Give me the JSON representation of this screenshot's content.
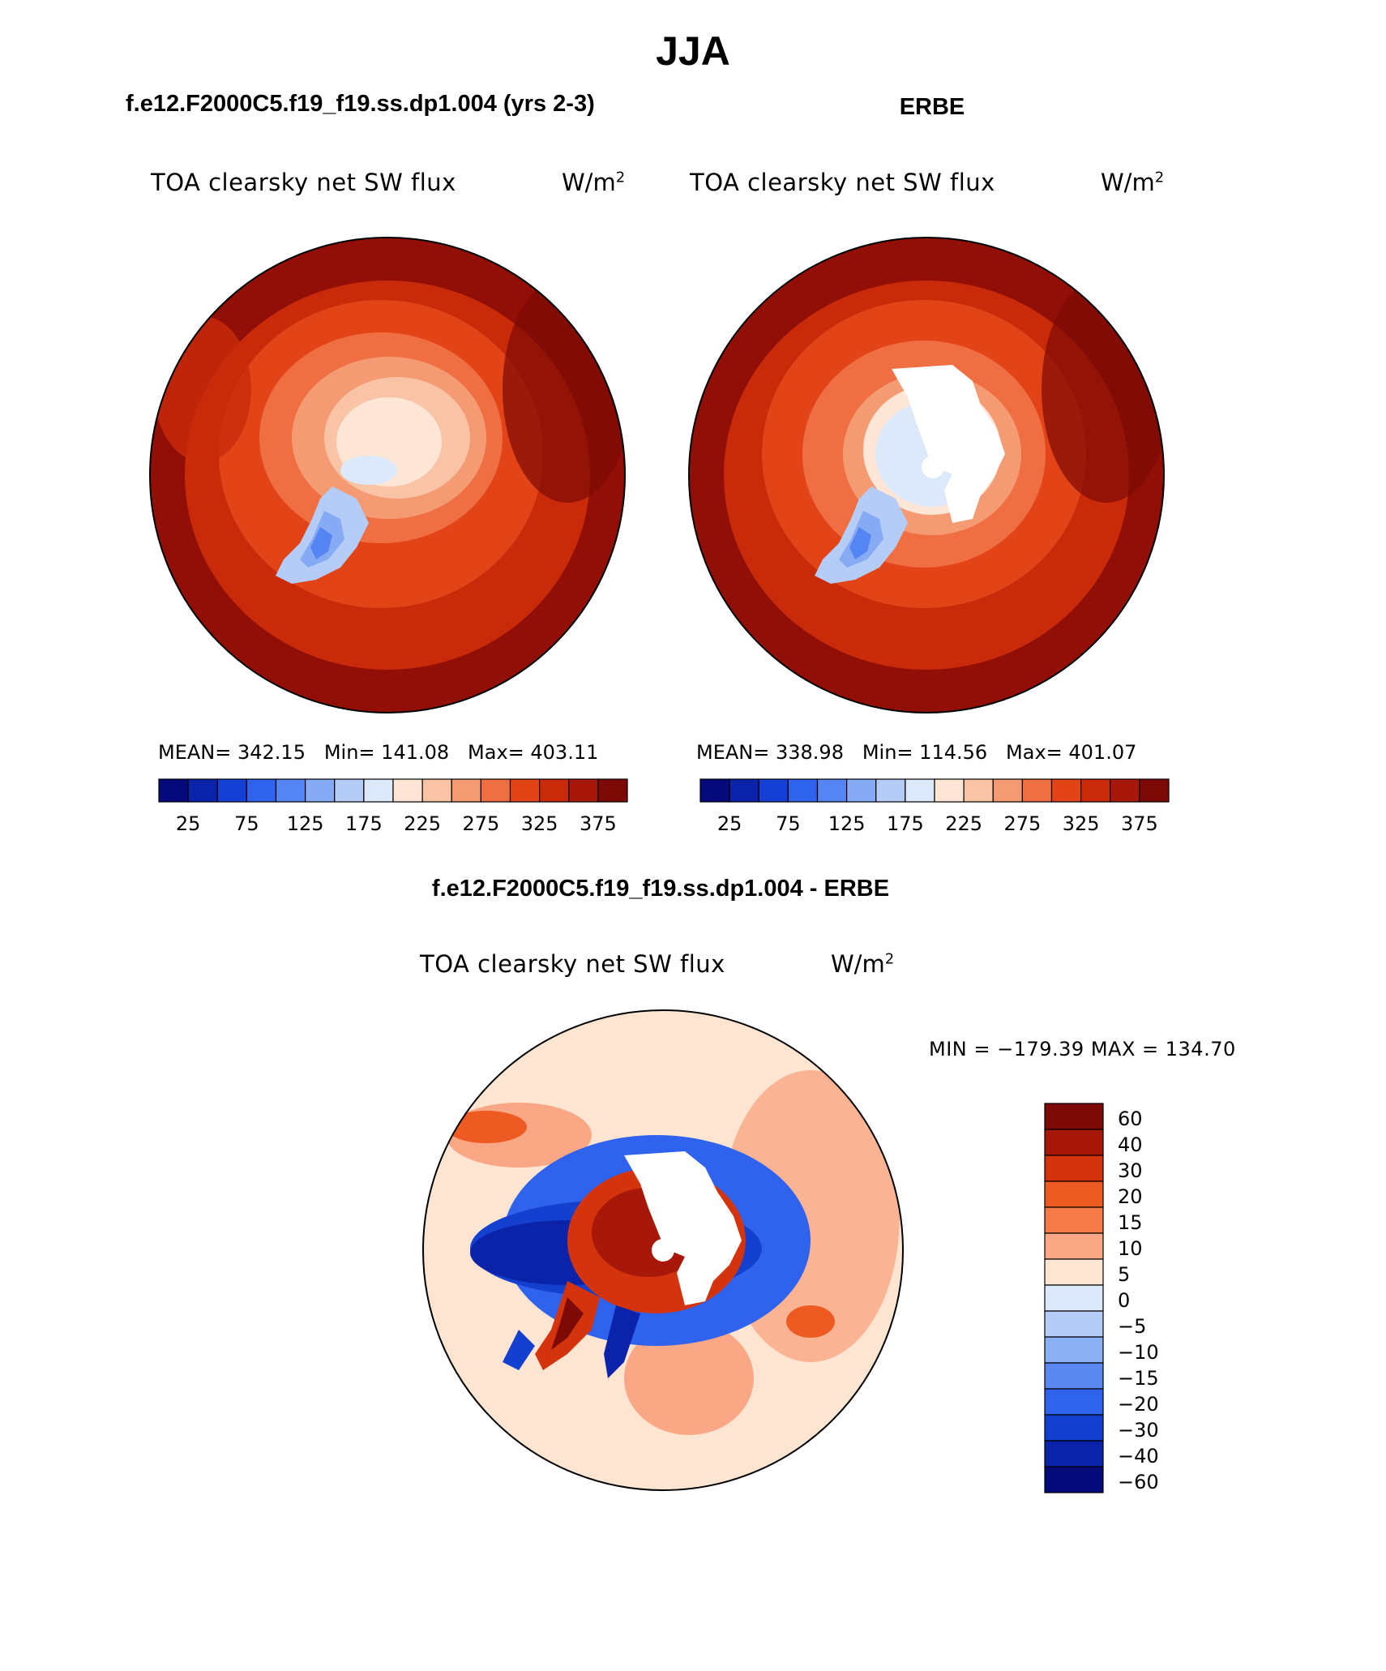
{
  "page": {
    "season": "JJA",
    "model_title": "f.e12.F2000C5.f19_f19.ss.dp1.004 (yrs 2-3)",
    "obs_title": "ERBE",
    "diff_title": "f.e12.F2000C5.f19_f19.ss.dp1.004 - ERBE"
  },
  "panels": {
    "model": {
      "variable": "TOA clearsky net SW flux",
      "units": "W/m",
      "units_exp": "2",
      "stats": "MEAN= 342.15   Min= 141.08   Max= 403.11"
    },
    "obs": {
      "variable": "TOA clearsky net SW flux",
      "units": "W/m",
      "units_exp": "2",
      "stats": "MEAN= 338.98   Min= 114.56   Max= 401.07"
    },
    "diff": {
      "variable": "TOA clearsky net SW flux",
      "units": "W/m",
      "units_exp": "2",
      "minmax": "MIN = −179.39  MAX = 134.70"
    }
  },
  "colorbar_abs": {
    "colors": [
      "#050a7a",
      "#0a23a8",
      "#1540d6",
      "#2f63ee",
      "#5585f2",
      "#86aaf3",
      "#b5cdf6",
      "#dbe9fb",
      "#fde6d6",
      "#f9c4a6",
      "#f59b73",
      "#ef6f42",
      "#e24418",
      "#c92a0a",
      "#a8180a",
      "#7d0a06"
    ],
    "labels": [
      "25",
      "75",
      "125",
      "175",
      "225",
      "275",
      "325",
      "375"
    ]
  },
  "colorbar_diff": {
    "colors": [
      "#7d0a06",
      "#a8180a",
      "#d3340e",
      "#ed5a22",
      "#f57c48",
      "#f9a784",
      "#fde5d2",
      "#dbe9fb",
      "#b5cdf6",
      "#8cb0f4",
      "#5a88f0",
      "#2f63ee",
      "#1440d0",
      "#0a23a8",
      "#050a7a"
    ],
    "labels": [
      "60",
      "40",
      "30",
      "20",
      "15",
      "10",
      "5",
      "0",
      "−5",
      "−10",
      "−15",
      "−20",
      "−30",
      "−40",
      "−60"
    ]
  },
  "chart_data": [
    {
      "type": "heatmap",
      "title": "f.e12.F2000C5.f19_f19.ss.dp1.004 (yrs 2-3)",
      "variable": "TOA clearsky net SW flux",
      "units": "W/m2",
      "projection": "north polar stereographic",
      "mean": 342.15,
      "min": 141.08,
      "max": 403.11,
      "contour_levels": [
        25,
        50,
        75,
        100,
        125,
        150,
        175,
        200,
        225,
        250,
        275,
        300,
        325,
        350,
        375
      ]
    },
    {
      "type": "heatmap",
      "title": "ERBE",
      "variable": "TOA clearsky net SW flux",
      "units": "W/m2",
      "projection": "north polar stereographic",
      "mean": 338.98,
      "min": 114.56,
      "max": 401.07,
      "contour_levels": [
        25,
        50,
        75,
        100,
        125,
        150,
        175,
        200,
        225,
        250,
        275,
        300,
        325,
        350,
        375
      ]
    },
    {
      "type": "heatmap",
      "title": "f.e12.F2000C5.f19_f19.ss.dp1.004 - ERBE",
      "variable": "TOA clearsky net SW flux",
      "units": "W/m2",
      "projection": "north polar stereographic",
      "min": -179.39,
      "max": 134.7,
      "contour_levels": [
        -60,
        -40,
        -30,
        -20,
        -15,
        -10,
        -5,
        0,
        5,
        10,
        15,
        20,
        30,
        40,
        60
      ]
    }
  ]
}
